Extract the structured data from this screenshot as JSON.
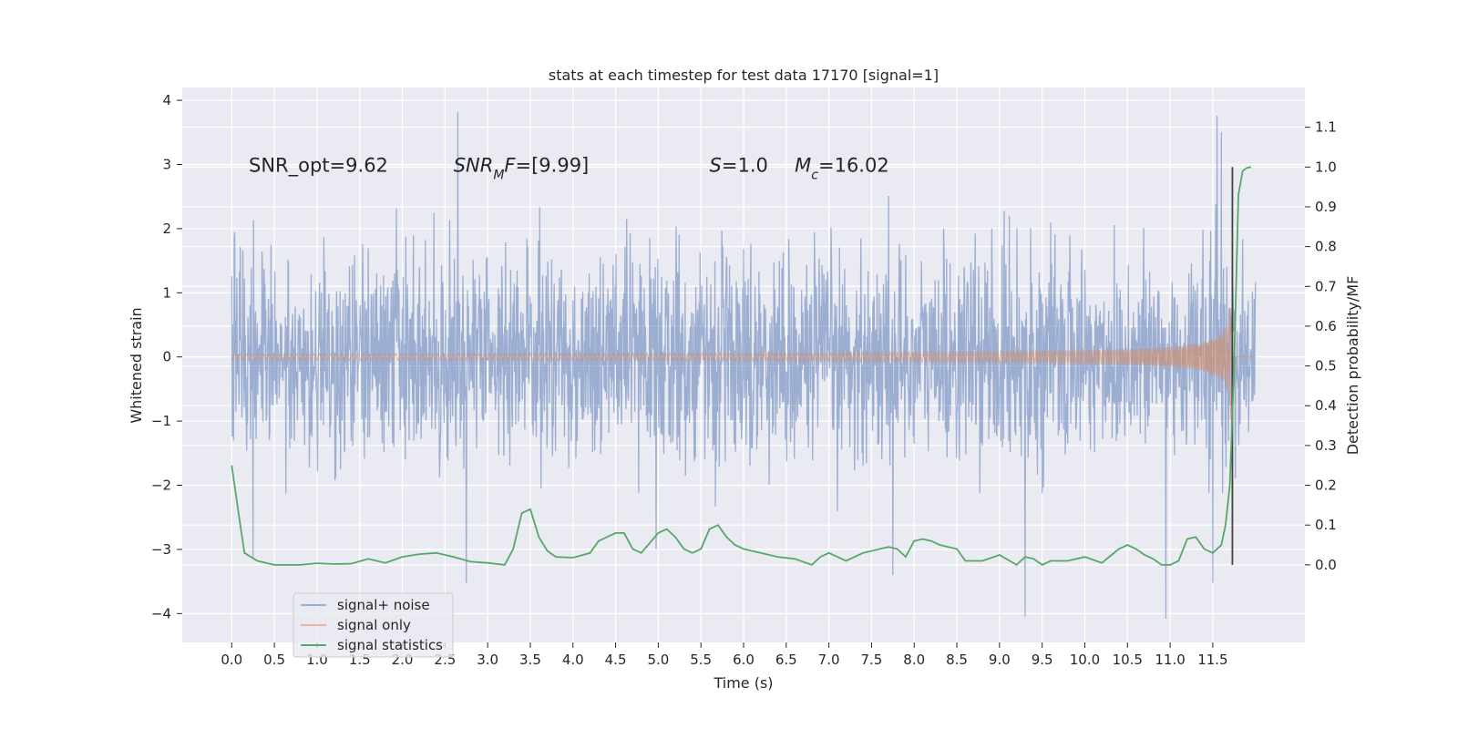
{
  "chart_data": {
    "type": "line",
    "title": "stats at each timestep for test data 17170 [signal=1]",
    "xlabel": "Time (s)",
    "ylabel": "Whitened strain",
    "ylabel_right": "Detection probability/MF",
    "xlim": [
      -0.58,
      12.58
    ],
    "ylim": [
      -4.45,
      4.2
    ],
    "ylim_right": [
      -0.195,
      1.2
    ],
    "x_ticks": [
      0.0,
      0.5,
      1.0,
      1.5,
      2.0,
      2.5,
      3.0,
      3.5,
      4.0,
      4.5,
      5.0,
      5.5,
      6.0,
      6.5,
      7.0,
      7.5,
      8.0,
      8.5,
      9.0,
      9.5,
      10.0,
      10.5,
      11.0,
      11.5
    ],
    "x_tick_labels": [
      "0.0",
      "0.5",
      "1.0",
      "1.5",
      "2.0",
      "2.5",
      "3.0",
      "3.5",
      "4.0",
      "4.5",
      "5.0",
      "5.5",
      "6.0",
      "6.5",
      "7.0",
      "7.5",
      "8.0",
      "8.5",
      "9.0",
      "9.5",
      "10.0",
      "10.5",
      "11.0",
      "11.5"
    ],
    "y_ticks": [
      -4,
      -3,
      -2,
      -1,
      0,
      1,
      2,
      3,
      4
    ],
    "y_tick_labels": [
      "−4",
      "−3",
      "−2",
      "−1",
      "0",
      "1",
      "2",
      "3",
      "4"
    ],
    "y_ticks_right": [
      0.0,
      0.1,
      0.2,
      0.3,
      0.4,
      0.5,
      0.6,
      0.7,
      0.8,
      0.9,
      1.0,
      1.1
    ],
    "y_tick_labels_right": [
      "0.0",
      "0.1",
      "0.2",
      "0.3",
      "0.4",
      "0.5",
      "0.6",
      "0.7",
      "0.8",
      "0.9",
      "1.0",
      "1.1"
    ],
    "grid": true,
    "legend_position": "lower-left",
    "annotations": [
      {
        "parts": [
          {
            "text": "SNR_opt=9.62"
          }
        ],
        "x": 0.2,
        "y": 3.0
      },
      {
        "parts": [
          {
            "text": "SNR",
            "italic": true
          },
          {
            "text": "M",
            "italic": true,
            "sub": true
          },
          {
            "text": "F",
            "italic": true
          },
          {
            "text": "=[9.99]"
          }
        ],
        "x": 2.6,
        "y": 3.0
      },
      {
        "parts": [
          {
            "text": "S",
            "italic": true
          },
          {
            "text": "=1.0"
          }
        ],
        "x": 5.6,
        "y": 3.0
      },
      {
        "parts": [
          {
            "text": "M",
            "italic": true
          },
          {
            "text": "c",
            "italic": true,
            "sub": true
          },
          {
            "text": "=16.02"
          }
        ],
        "x": 6.6,
        "y": 3.0
      }
    ],
    "series": [
      {
        "name": "signal+ noise",
        "color": "#4c72b0",
        "opacity": 0.5,
        "axis": "left",
        "description": "whitened strain, approx. Gaussian noise with std 0.8 over 0 to 12 s",
        "x_range": [
          0.0,
          12.0
        ],
        "envelope_std": 0.8,
        "peaks": [
          {
            "x": 2.65,
            "y": 3.82
          },
          {
            "x": 11.55,
            "y": 3.76
          },
          {
            "x": 11.6,
            "y": 3.5
          },
          {
            "x": 9.3,
            "y": -4.05
          },
          {
            "x": 10.95,
            "y": -4.08
          },
          {
            "x": 2.75,
            "y": -3.52
          },
          {
            "x": 11.5,
            "y": -3.52
          },
          {
            "x": 7.75,
            "y": -3.4
          },
          {
            "x": 0.25,
            "y": -3.15
          }
        ]
      },
      {
        "name": "signal only",
        "color": "#dd8452",
        "opacity": 0.5,
        "axis": "left",
        "description": "chirp signal with amplitude growing to about 1.5 at merger near 11.73 s",
        "merger_time": 11.73,
        "peak_amplitude": 1.5
      },
      {
        "name": "signal statistics",
        "color": "#55a868",
        "opacity": 1.0,
        "axis": "right",
        "x": [
          0.0,
          0.1,
          0.15,
          0.3,
          0.5,
          0.8,
          1.0,
          1.2,
          1.4,
          1.6,
          1.8,
          2.0,
          2.2,
          2.4,
          2.6,
          2.8,
          3.0,
          3.2,
          3.3,
          3.4,
          3.5,
          3.6,
          3.7,
          3.8,
          4.0,
          4.2,
          4.3,
          4.4,
          4.5,
          4.6,
          4.7,
          4.8,
          5.0,
          5.1,
          5.2,
          5.3,
          5.4,
          5.5,
          5.6,
          5.7,
          5.8,
          5.9,
          6.0,
          6.2,
          6.4,
          6.6,
          6.8,
          6.9,
          7.0,
          7.1,
          7.2,
          7.4,
          7.6,
          7.7,
          7.8,
          7.9,
          8.0,
          8.1,
          8.2,
          8.3,
          8.5,
          8.6,
          8.8,
          9.0,
          9.2,
          9.3,
          9.4,
          9.5,
          9.6,
          9.8,
          10.0,
          10.2,
          10.4,
          10.5,
          10.6,
          10.7,
          10.8,
          10.9,
          11.0,
          11.1,
          11.2,
          11.3,
          11.4,
          11.5,
          11.6,
          11.65,
          11.7,
          11.75,
          11.8,
          11.85,
          11.9,
          11.95
        ],
        "values": [
          0.25,
          0.1,
          0.03,
          0.01,
          0.0,
          0.0,
          0.004,
          0.002,
          0.003,
          0.015,
          0.005,
          0.02,
          0.027,
          0.03,
          0.02,
          0.008,
          0.005,
          0.0,
          0.04,
          0.13,
          0.14,
          0.07,
          0.035,
          0.02,
          0.018,
          0.03,
          0.06,
          0.07,
          0.08,
          0.08,
          0.04,
          0.03,
          0.08,
          0.09,
          0.07,
          0.04,
          0.03,
          0.04,
          0.09,
          0.1,
          0.07,
          0.05,
          0.04,
          0.03,
          0.02,
          0.015,
          0.0,
          0.02,
          0.03,
          0.02,
          0.01,
          0.03,
          0.04,
          0.045,
          0.04,
          0.02,
          0.06,
          0.065,
          0.06,
          0.05,
          0.04,
          0.01,
          0.01,
          0.025,
          0.0,
          0.02,
          0.015,
          0.0,
          0.01,
          0.01,
          0.02,
          0.005,
          0.04,
          0.05,
          0.04,
          0.025,
          0.015,
          0.0,
          0.0,
          0.01,
          0.065,
          0.07,
          0.04,
          0.03,
          0.05,
          0.1,
          0.2,
          0.5,
          0.93,
          0.99,
          0.998,
          1.0
        ]
      }
    ],
    "marker_line": {
      "color": "#404040",
      "x": 11.73,
      "y_range": [
        0.0,
        1.0
      ]
    }
  }
}
